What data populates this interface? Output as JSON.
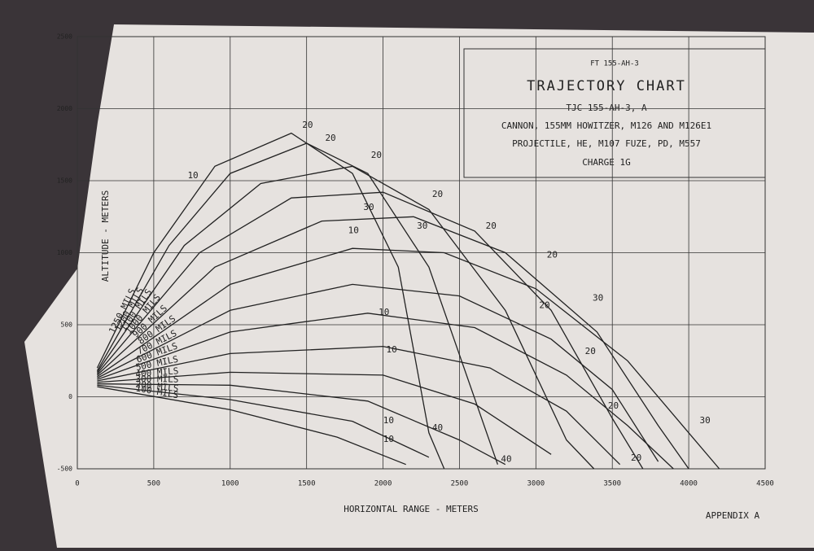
{
  "header": "FT 155-AH-3",
  "footer": "APPENDIX A",
  "chart_data": {
    "type": "line",
    "title": "TRAJECTORY CHART",
    "subtitle": [
      "TJC 155-AH-3, A",
      "CANNON, 155MM HOWITZER, M126 AND M126E1",
      "PROJECTILE, HE, M107 FUZE, PD, M557",
      "CHARGE 1G"
    ],
    "x_label": "HORIZONTAL RANGE - METERS",
    "y_label": "ALTITUDE - METERS",
    "xlim": [
      0,
      4500
    ],
    "ylim": [
      -500,
      2500
    ],
    "xticks": [
      0,
      500,
      1000,
      1500,
      2000,
      2500,
      3000,
      3500,
      4000,
      4500
    ],
    "yticks": [
      -500,
      0,
      500,
      1000,
      1500,
      2000,
      2500
    ],
    "grid": true,
    "series": [
      {
        "name": "1250 MILS",
        "color": "#222",
        "x": [
          130,
          500,
          900,
          1400,
          1800,
          2100,
          2300,
          2400
        ],
        "values": [
          200,
          1000,
          1600,
          1830,
          1550,
          900,
          -250,
          -500
        ]
      },
      {
        "name": "1200 MILS",
        "color": "#222",
        "x": [
          130,
          600,
          1000,
          1500,
          1900,
          2300,
          2750
        ],
        "values": [
          180,
          1050,
          1550,
          1760,
          1550,
          900,
          -470
        ]
      },
      {
        "name": "1100 MILS",
        "color": "#222",
        "x": [
          130,
          700,
          1200,
          1800,
          2300,
          2800,
          3200,
          3380
        ],
        "values": [
          170,
          1050,
          1480,
          1600,
          1300,
          600,
          -300,
          -500
        ]
      },
      {
        "name": "1000 MILS",
        "color": "#222",
        "x": [
          130,
          800,
          1400,
          2000,
          2600,
          3100,
          3500,
          3700
        ],
        "values": [
          160,
          1000,
          1380,
          1420,
          1150,
          600,
          -150,
          -500
        ]
      },
      {
        "name": "900 MILS",
        "color": "#222",
        "x": [
          130,
          900,
          1600,
          2200,
          2800,
          3400,
          3800,
          4000
        ],
        "values": [
          150,
          900,
          1220,
          1250,
          1000,
          450,
          -200,
          -500
        ]
      },
      {
        "name": "800 MILS",
        "color": "#222",
        "x": [
          130,
          1000,
          1800,
          2400,
          3000,
          3600,
          4000,
          4200
        ],
        "values": [
          140,
          780,
          1030,
          1000,
          750,
          250,
          -250,
          -500
        ]
      },
      {
        "name": "700 MILS",
        "color": "#222",
        "x": [
          130,
          1000,
          1800,
          2500,
          3100,
          3500,
          3800
        ],
        "values": [
          130,
          600,
          780,
          700,
          400,
          50,
          -450
        ]
      },
      {
        "name": "600 MILS",
        "color": "#222",
        "x": [
          130,
          1000,
          1900,
          2600,
          3200,
          3600,
          3900
        ],
        "values": [
          120,
          450,
          580,
          480,
          150,
          -200,
          -500
        ]
      },
      {
        "name": "500 MILS",
        "color": "#222",
        "x": [
          130,
          1000,
          2000,
          2700,
          3200,
          3550
        ],
        "values": [
          110,
          300,
          350,
          200,
          -100,
          -470
        ]
      },
      {
        "name": "400 MILS",
        "color": "#222",
        "x": [
          130,
          1000,
          2000,
          2600,
          3100
        ],
        "values": [
          100,
          170,
          150,
          -50,
          -400
        ]
      },
      {
        "name": "300 MILS",
        "color": "#222",
        "x": [
          130,
          1000,
          1900,
          2500,
          2800
        ],
        "values": [
          90,
          80,
          -30,
          -300,
          -470
        ]
      },
      {
        "name": "200 MILS",
        "color": "#222",
        "x": [
          130,
          1000,
          1800,
          2300
        ],
        "values": [
          80,
          -20,
          -170,
          -420
        ]
      },
      {
        "name": "100 MILS",
        "color": "#222",
        "x": [
          130,
          1000,
          1700,
          2150
        ],
        "values": [
          70,
          -90,
          -280,
          -470
        ]
      }
    ],
    "annotations": [
      {
        "text": "20",
        "x": 1450,
        "y": 1850
      },
      {
        "text": "20",
        "x": 1600,
        "y": 1760
      },
      {
        "text": "20",
        "x": 1900,
        "y": 1640
      },
      {
        "text": "30",
        "x": 1850,
        "y": 1280
      },
      {
        "text": "30",
        "x": 2200,
        "y": 1150
      },
      {
        "text": "40",
        "x": 2300,
        "y": -250
      },
      {
        "text": "40",
        "x": 2750,
        "y": -470
      },
      {
        "text": "20",
        "x": 2300,
        "y": 1370
      },
      {
        "text": "20",
        "x": 2650,
        "y": 1150
      },
      {
        "text": "20",
        "x": 3050,
        "y": 950
      },
      {
        "text": "30",
        "x": 3350,
        "y": 650
      },
      {
        "text": "20",
        "x": 3000,
        "y": 600
      },
      {
        "text": "20",
        "x": 3300,
        "y": 280
      },
      {
        "text": "20",
        "x": 3450,
        "y": -100
      },
      {
        "text": "20",
        "x": 3600,
        "y": -460
      },
      {
        "text": "30",
        "x": 4050,
        "y": -200
      },
      {
        "text": "10",
        "x": 700,
        "y": 1500
      },
      {
        "text": "10",
        "x": 1750,
        "y": 1120
      },
      {
        "text": "10",
        "x": 1950,
        "y": 550
      },
      {
        "text": "10",
        "x": 2000,
        "y": 290
      },
      {
        "text": "10",
        "x": 1980,
        "y": -200
      },
      {
        "text": "10",
        "x": 1980,
        "y": -330
      }
    ]
  }
}
